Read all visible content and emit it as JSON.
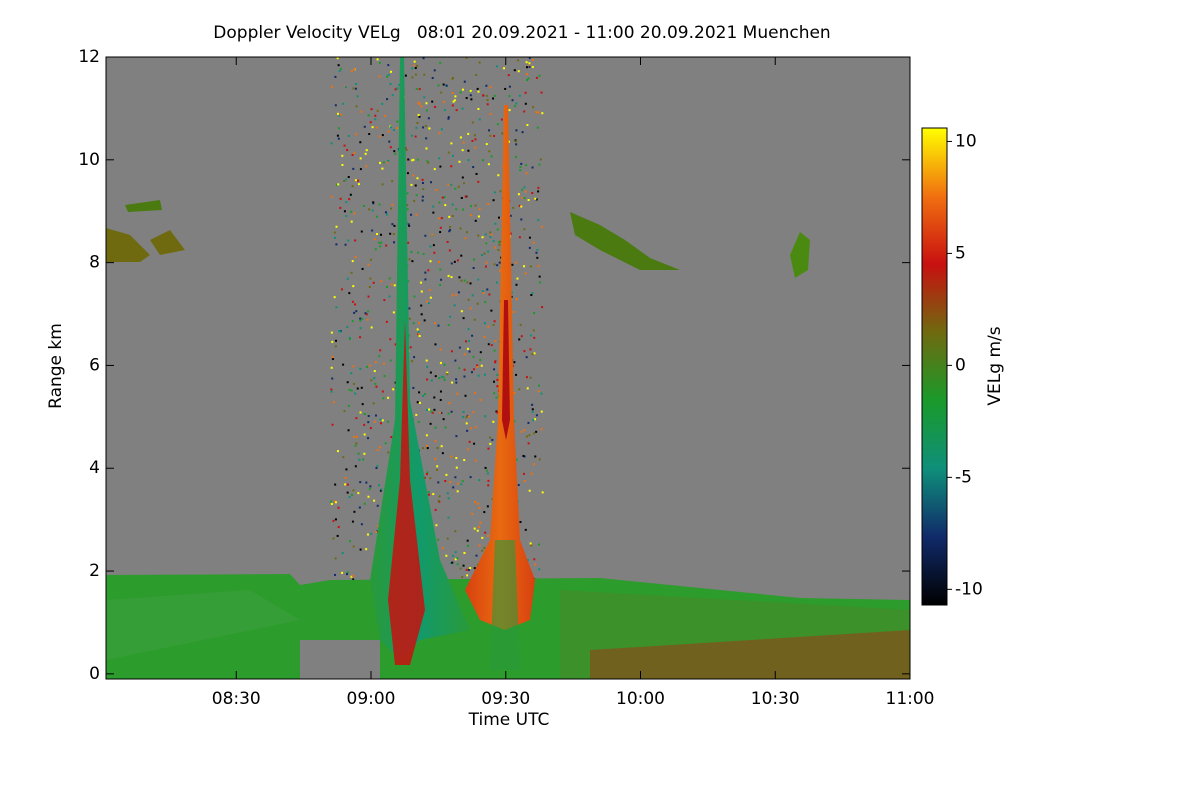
{
  "chart_data": {
    "type": "heatmap",
    "title": "Doppler Velocity VELg   08:01 20.09.2021 - 11:00 20.09.2021 Muenchen",
    "x_label": "Time UTC",
    "y_label": "Range km",
    "xlim": [
      481,
      660
    ],
    "xticks": [
      {
        "value": 510,
        "label": "08:30"
      },
      {
        "value": 540,
        "label": "09:00"
      },
      {
        "value": 570,
        "label": "09:30"
      },
      {
        "value": 600,
        "label": "10:00"
      },
      {
        "value": 630,
        "label": "10:30"
      },
      {
        "value": 660,
        "label": "11:00"
      }
    ],
    "ylim": [
      -0.1,
      12
    ],
    "yticks": [
      0,
      2,
      4,
      6,
      8,
      10,
      12
    ],
    "colorbar": {
      "label": "VELg m/s",
      "lim": [
        -10.7,
        10.6
      ],
      "ticks": [
        10,
        5,
        0,
        -5,
        -10
      ],
      "colors": [
        "#000000",
        "#102a6a",
        "#0f8f7a",
        "#1a9a2a",
        "#6f6a10",
        "#c81010",
        "#f07010",
        "#ffff00"
      ]
    },
    "background": "#808080"
  }
}
